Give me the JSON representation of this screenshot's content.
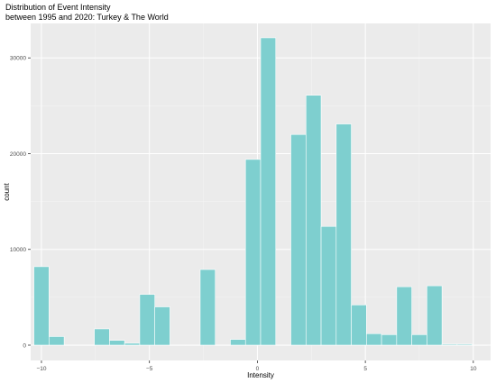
{
  "chart_data": {
    "type": "bar",
    "title": "Distribution of Event Intensity",
    "subtitle": "between 1995 and 2020: Turkey & The World",
    "xlabel": "Intensity",
    "ylabel": "count",
    "xlim": [
      -10.5,
      10.8
    ],
    "ylim": [
      -1600,
      33600
    ],
    "x_ticks": [
      -10,
      -5,
      0,
      5,
      10
    ],
    "y_ticks": [
      0,
      10000,
      20000,
      30000
    ],
    "bin_width": 0.7,
    "bin_centers": [
      -10,
      -9.3,
      -8.6,
      -7.9,
      -7.2,
      -6.5,
      -5.8,
      -5.1,
      -4.4,
      -3.7,
      -3.0,
      -2.3,
      -1.6,
      -0.9,
      -0.2,
      0.5,
      1.2,
      1.9,
      2.6,
      3.3,
      4.0,
      4.7,
      5.4,
      6.1,
      6.8,
      7.5,
      8.2,
      8.9,
      9.6,
      10.3
    ],
    "values": [
      8200,
      900,
      0,
      0,
      1700,
      500,
      200,
      5300,
      4000,
      0,
      0,
      7900,
      0,
      600,
      19400,
      32100,
      0,
      22000,
      26100,
      12400,
      23100,
      4200,
      1200,
      1100,
      6100,
      1100,
      6200,
      100,
      100,
      0
    ],
    "fill_color": "#7ecfcf",
    "panel_color": "#ebebeb",
    "grid": true
  }
}
